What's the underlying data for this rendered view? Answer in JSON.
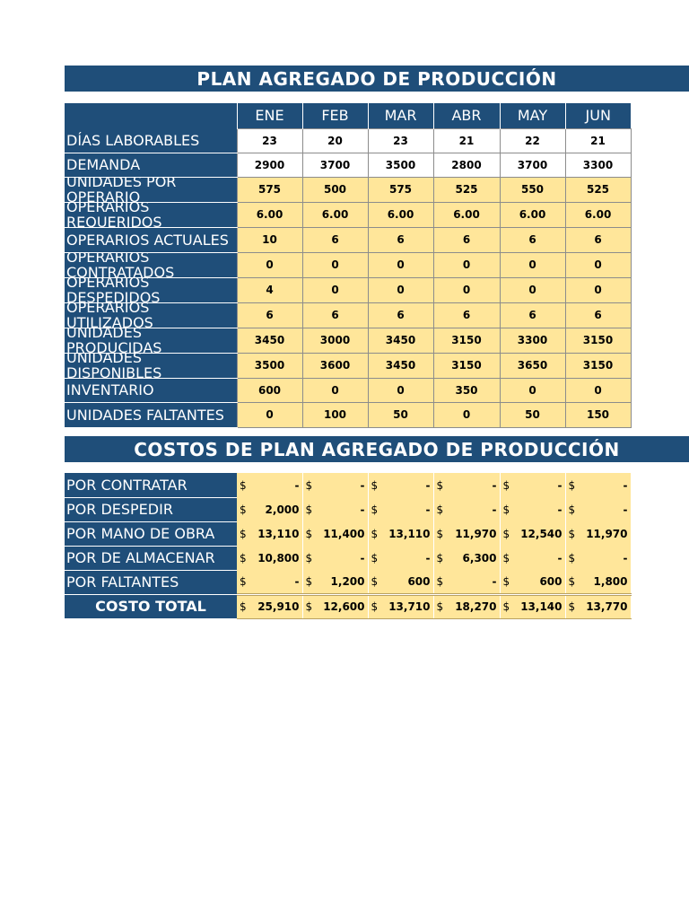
{
  "plan": {
    "title": "PLAN AGREGADO DE PRODUCCIÓN",
    "months": [
      "ENE",
      "FEB",
      "MAR",
      "ABR",
      "MAY",
      "JUN"
    ],
    "rows": [
      {
        "label": "DÍAS LABORABLES",
        "values": [
          "23",
          "20",
          "23",
          "21",
          "22",
          "21"
        ],
        "fill": "white"
      },
      {
        "label": "DEMANDA",
        "values": [
          "2900",
          "3700",
          "3500",
          "2800",
          "3700",
          "3300"
        ],
        "fill": "white"
      },
      {
        "label": "UNIDADES POR OPERARIO",
        "values": [
          "575",
          "500",
          "575",
          "525",
          "550",
          "525"
        ],
        "fill": "yellow"
      },
      {
        "label": "OPERARIOS REQUERIDOS",
        "values": [
          "6.00",
          "6.00",
          "6.00",
          "6.00",
          "6.00",
          "6.00"
        ],
        "fill": "yellow"
      },
      {
        "label": "OPERARIOS ACTUALES",
        "values": [
          "10",
          "6",
          "6",
          "6",
          "6",
          "6"
        ],
        "fill": "yellow"
      },
      {
        "label": "OPERARIOS CONTRATADOS",
        "values": [
          "0",
          "0",
          "0",
          "0",
          "0",
          "0"
        ],
        "fill": "yellow"
      },
      {
        "label": "OPERARIOS DESPEDIDOS",
        "values": [
          "4",
          "0",
          "0",
          "0",
          "0",
          "0"
        ],
        "fill": "yellow"
      },
      {
        "label": "OPERARIOS UTILIZADOS",
        "values": [
          "6",
          "6",
          "6",
          "6",
          "6",
          "6"
        ],
        "fill": "yellow"
      },
      {
        "label": "UNIDADES PRODUCIDAS",
        "values": [
          "3450",
          "3000",
          "3450",
          "3150",
          "3300",
          "3150"
        ],
        "fill": "yellow"
      },
      {
        "label": "UNIDADES DISPONIBLES",
        "values": [
          "3500",
          "3600",
          "3450",
          "3150",
          "3650",
          "3150"
        ],
        "fill": "yellow"
      },
      {
        "label": "INVENTARIO",
        "values": [
          "600",
          "0",
          "0",
          "350",
          "0",
          "0"
        ],
        "fill": "yellow"
      },
      {
        "label": "UNIDADES FALTANTES",
        "values": [
          "0",
          "100",
          "50",
          "0",
          "50",
          "150"
        ],
        "fill": "yellow"
      }
    ]
  },
  "costs": {
    "title": "COSTOS DE PLAN AGREGADO DE PRODUCCIÓN",
    "currency": "$",
    "rows": [
      {
        "label": "POR CONTRATAR",
        "values": [
          "-",
          "-",
          "-",
          "-",
          "-",
          "-"
        ]
      },
      {
        "label": "POR DESPEDIR",
        "values": [
          "2,000",
          "-",
          "-",
          "-",
          "-",
          "-"
        ]
      },
      {
        "label": "POR MANO DE OBRA",
        "values": [
          "13,110",
          "11,400",
          "13,110",
          "11,970",
          "12,540",
          "11,970"
        ]
      },
      {
        "label": "POR DE ALMACENAR",
        "values": [
          "10,800",
          "-",
          "-",
          "6,300",
          "-",
          "-"
        ]
      },
      {
        "label": "POR FALTANTES",
        "values": [
          "-",
          "1,200",
          "600",
          "-",
          "600",
          "1,800"
        ]
      }
    ],
    "total": {
      "label": "COSTO TOTAL",
      "values": [
        "25,910",
        "12,600",
        "13,710",
        "18,270",
        "13,140",
        "13,770"
      ]
    }
  },
  "colors": {
    "header_blue": "#1f4e79",
    "cell_yellow": "#ffe69a",
    "cell_white": "#ffffff"
  }
}
